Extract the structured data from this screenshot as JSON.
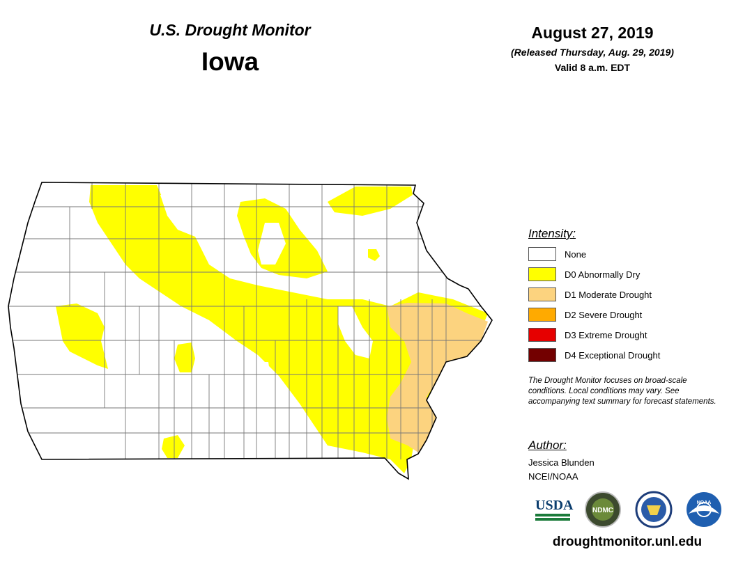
{
  "header": {
    "title": "U.S. Drought Monitor",
    "state": "Iowa",
    "date": "August 27, 2019",
    "released": "(Released Thursday, Aug. 29, 2019)",
    "valid": "Valid 8 a.m. EDT"
  },
  "legend": {
    "title": "Intensity:",
    "items": [
      {
        "label": "None",
        "color": "#ffffff"
      },
      {
        "label": "D0 Abnormally Dry",
        "color": "#ffff00"
      },
      {
        "label": "D1 Moderate Drought",
        "color": "#fcd37f"
      },
      {
        "label": "D2 Severe Drought",
        "color": "#ffaa00"
      },
      {
        "label": "D3 Extreme Drought",
        "color": "#e60000"
      },
      {
        "label": "D4 Exceptional Drought",
        "color": "#730000"
      }
    ]
  },
  "note": "The Drought Monitor focuses on broad-scale conditions. Local conditions may vary. See accompanying text summary for forecast statements.",
  "author": {
    "heading": "Author:",
    "name": "Jessica Blunden",
    "org": "NCEI/NOAA"
  },
  "logos": {
    "usda": "USDA",
    "ndmc": "NDMC",
    "noaa": "NOAA"
  },
  "site": "droughtmonitor.unl.edu"
}
